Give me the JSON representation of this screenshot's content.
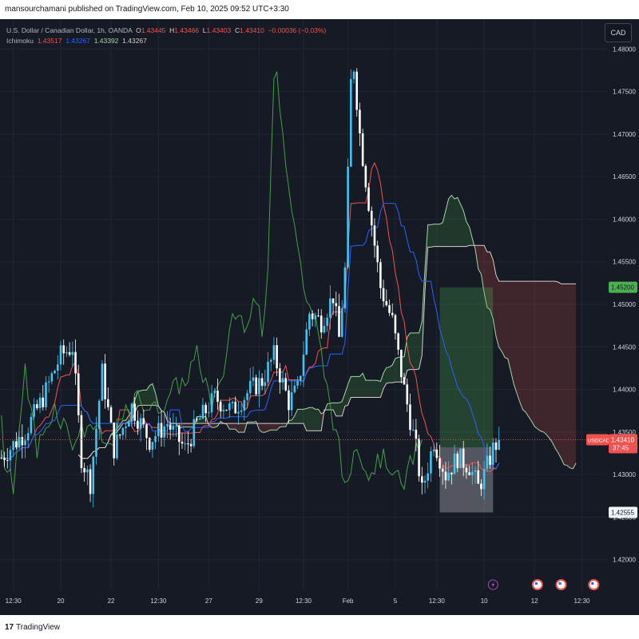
{
  "header": {
    "publish_text": "mansourchamani published on TradingView.com, Feb 10, 2025 09:52 UTC+3:30"
  },
  "legend": {
    "symbol_desc": "U.S. Dollar / Canadian Dollar, 1h, OANDA",
    "o_label": "O",
    "o_value": "1.43445",
    "h_label": "H",
    "h_value": "1.43466",
    "l_label": "L",
    "l_value": "1.43403",
    "c_label": "C",
    "c_value": "1.43410",
    "change": "−0.00036 (−0.03%)",
    "indicator": "Ichimoku",
    "ichi_values": [
      "1.43517",
      "1.43267",
      "1.43392",
      "1.43267"
    ],
    "ichi_colors": [
      "#ef5350",
      "#2962ff",
      "#a5d6a7",
      "#d7ccc8"
    ]
  },
  "currency_label": "CAD",
  "price_tags": {
    "target": "1.45200",
    "symbol": "USDCAD",
    "last": "1.43410",
    "countdown": "37:45",
    "entry": "1.43320",
    "stop": "1.42555"
  },
  "footer": {
    "logo": "17",
    "brand": "TradingView"
  },
  "chart_data": {
    "type": "candlestick",
    "symbol": "USDCAD",
    "timeframe": "1h",
    "y_ticks": [
      1.42,
      1.425,
      1.43,
      1.435,
      1.44,
      1.445,
      1.45,
      1.455,
      1.46,
      1.465,
      1.47,
      1.475,
      1.48
    ],
    "y_tick_labels": [
      "1.42000",
      "1.42500",
      "1.43000",
      "1.43500",
      "1.44000",
      "1.44500",
      "1.45000",
      "1.45500",
      "1.46000",
      "1.46500",
      "1.47000",
      "1.47500",
      "1.48000"
    ],
    "ylim": [
      1.4165,
      1.4835
    ],
    "x_tick_labels": [
      "12:30",
      "20",
      "22",
      "12:30",
      "27",
      "29",
      "12:30",
      "Feb",
      "5",
      "12:30",
      "10",
      "12",
      "12:30"
    ],
    "x_tick_index": [
      4,
      20,
      37,
      53,
      70,
      87,
      102,
      117,
      133,
      147,
      163,
      180,
      196
    ],
    "bars_total": 205,
    "key_closes": [
      [
        0,
        1.432
      ],
      [
        8,
        1.435
      ],
      [
        14,
        1.439
      ],
      [
        20,
        1.444
      ],
      [
        24,
        1.445
      ],
      [
        27,
        1.432
      ],
      [
        30,
        1.429
      ],
      [
        34,
        1.442
      ],
      [
        38,
        1.433
      ],
      [
        44,
        1.438
      ],
      [
        50,
        1.434
      ],
      [
        56,
        1.436
      ],
      [
        62,
        1.433
      ],
      [
        66,
        1.436
      ],
      [
        72,
        1.439
      ],
      [
        78,
        1.4375
      ],
      [
        84,
        1.44
      ],
      [
        88,
        1.441
      ],
      [
        92,
        1.444
      ],
      [
        97,
        1.4385
      ],
      [
        100,
        1.44
      ],
      [
        104,
        1.449
      ],
      [
        108,
        1.448
      ],
      [
        112,
        1.451
      ],
      [
        114,
        1.446
      ],
      [
        116,
        1.454
      ],
      [
        118,
        1.476
      ],
      [
        119,
        1.478
      ],
      [
        121,
        1.47
      ],
      [
        124,
        1.462
      ],
      [
        128,
        1.452
      ],
      [
        132,
        1.448
      ],
      [
        136,
        1.44
      ],
      [
        140,
        1.433
      ],
      [
        142,
        1.428
      ],
      [
        146,
        1.434
      ],
      [
        150,
        1.43
      ],
      [
        154,
        1.432
      ],
      [
        158,
        1.431
      ],
      [
        161,
        1.4285
      ],
      [
        163,
        1.43
      ],
      [
        166,
        1.433
      ],
      [
        168,
        1.4341
      ]
    ],
    "last_bar_index": 168,
    "current_price": 1.4341,
    "position": {
      "type": "long",
      "entry": 1.4332,
      "target": 1.452,
      "stop": 1.42555,
      "start_index": 148,
      "end_index": 166
    },
    "events": [
      {
        "icon": "lightning-icon",
        "index": 166
      },
      {
        "icon": "us-flag-icon",
        "index": 181
      },
      {
        "icon": "us-flag-icon",
        "index": 189
      },
      {
        "icon": "us-flag-icon",
        "index": 200
      }
    ],
    "colors": {
      "up": "#26a69a",
      "down": "#ef5350",
      "up_bright": "#42c4f3",
      "down_bright": "#ffffff",
      "tenkan": "#ef5350",
      "kijun": "#2962ff",
      "chikou": "#43a047",
      "senkou_a": "#a5d6a7",
      "senkou_b": "#d7ccc8",
      "target_zone": "#4caf50",
      "stop_zone": "#f5f5f5",
      "background": "#161a25",
      "grid": "#222634"
    }
  }
}
